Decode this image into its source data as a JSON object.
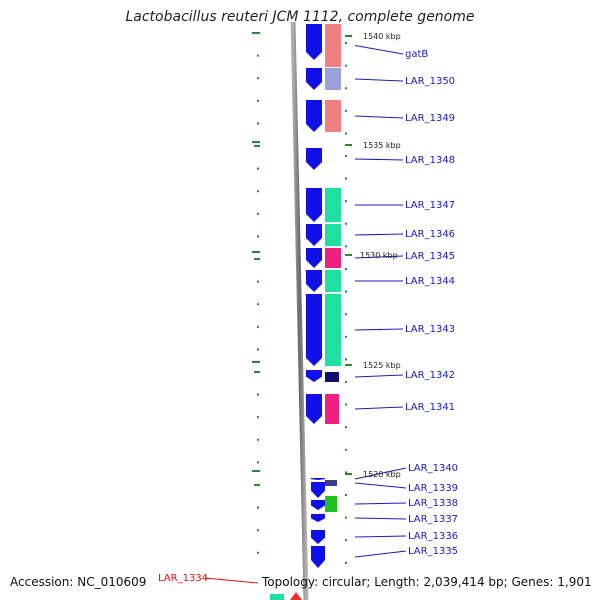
{
  "title": "Lactobacillus reuteri JCM 1112, complete genome",
  "footer": {
    "accession": "Accession: NC_010609",
    "topology": "Topology: circular; Length: 2,039,414 bp; Genes: 1,901"
  },
  "colors": {
    "forward_gene": "#1010e8",
    "backbone": "#7a7a7a",
    "tick": "#2a8a2a",
    "label": "#1a1ac0",
    "highlight_label": "#e01010"
  },
  "position_markers": [
    {
      "label": "1540 kbp"
    },
    {
      "label": "1535 kbp"
    },
    {
      "label": "1530 kbp"
    },
    {
      "label": "1525 kbp"
    },
    {
      "label": "1520 kbp"
    }
  ],
  "genes": [
    {
      "label": "gatB",
      "color": "#f08080"
    },
    {
      "label": "LAR_1350",
      "color": "#9aa0d8"
    },
    {
      "label": "LAR_1349",
      "color": "#f08080"
    },
    {
      "label": "LAR_1348",
      "color": ""
    },
    {
      "label": "LAR_1347",
      "color": "#20e0a0"
    },
    {
      "label": "LAR_1346",
      "color": "#20e0a0"
    },
    {
      "label": "LAR_1345",
      "color": "#f02080"
    },
    {
      "label": "LAR_1344",
      "color": "#20e0a0"
    },
    {
      "label": "LAR_1343",
      "color": "#20e0a0"
    },
    {
      "label": "LAR_1342",
      "color": "#101070"
    },
    {
      "label": "LAR_1341",
      "color": "#f02080"
    },
    {
      "label": "LAR_1340",
      "color": ""
    },
    {
      "label": "LAR_1339",
      "color": "#3a3a8a"
    },
    {
      "label": "LAR_1338",
      "color": "#20c020"
    },
    {
      "label": "LAR_1337",
      "color": ""
    },
    {
      "label": "LAR_1336",
      "color": ""
    },
    {
      "label": "LAR_1335",
      "color": ""
    }
  ],
  "highlighted_gene": {
    "label": "LAR_1334"
  }
}
